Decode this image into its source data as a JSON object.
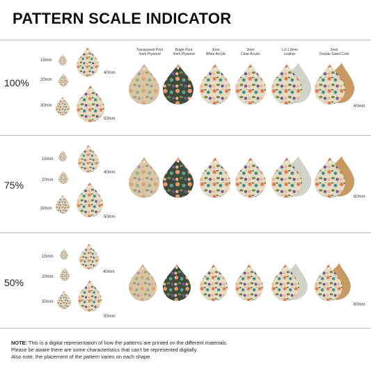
{
  "title": "PATTERN SCALE INDICATOR",
  "scales": [
    {
      "label": "100%"
    },
    {
      "label": "75%"
    },
    {
      "label": "50%"
    }
  ],
  "sizes": [
    "15mm",
    "20mm",
    "30mm",
    "40mm",
    "50mm",
    "60mm"
  ],
  "materials": [
    {
      "line1": "Transparent Print",
      "line2": "3mm Plywood",
      "key": "plywood-transparent"
    },
    {
      "line1": "Bright Print",
      "line2": "3mm Plywood",
      "key": "plywood-bright"
    },
    {
      "line1": "3mm",
      "line2": "White Acrylic",
      "key": "white-acrylic"
    },
    {
      "line1": "3mm",
      "line2": "Clear Acrylic",
      "key": "clear-acrylic"
    },
    {
      "line1": "1.6-1.8mm",
      "line2": "Leather",
      "key": "leather"
    },
    {
      "line1": "2mm",
      "line2": "Double Sided Cork",
      "key": "cork"
    }
  ],
  "colors": {
    "floral_bg": "#e8ddc8",
    "teal": "#5aa39a",
    "peach": "#e8996f",
    "purple": "#6a5b9a",
    "leaf": "#6f8a4e",
    "leather": "#cfd3c8",
    "cork": "#c89a63",
    "plywood": "#c9a778"
  },
  "note": {
    "prefix": "NOTE:",
    "line1": " This is a digital representation of how the patterns are printed on the different materials.",
    "line2": "Please be aware there are some characteristics that can't be represented digitally.",
    "line3": "Also note, the placement of the pattern varies on each shape."
  }
}
